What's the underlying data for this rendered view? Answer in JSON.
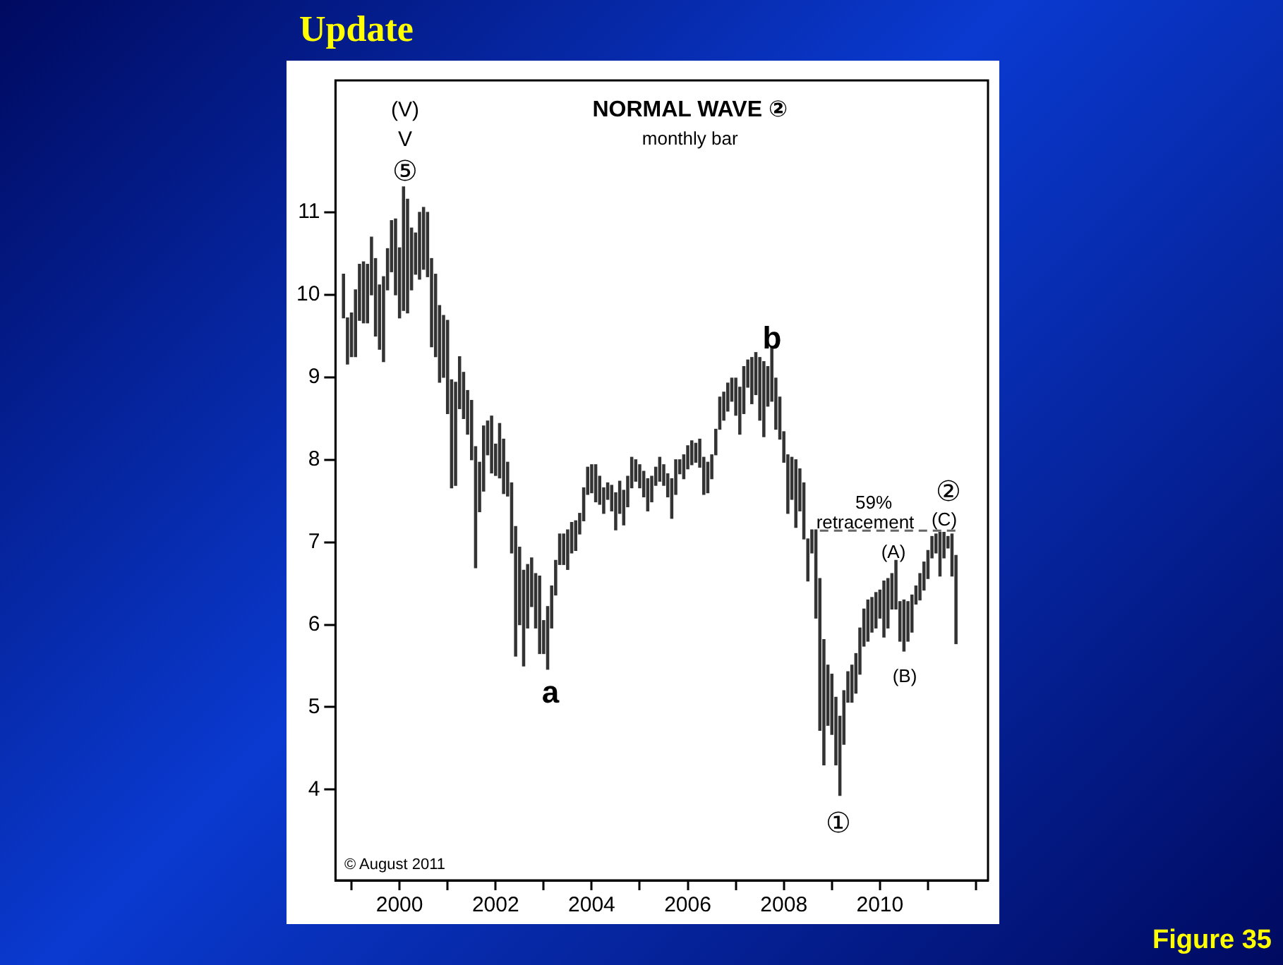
{
  "chart_data": {
    "type": "bar",
    "title": "NORMAL WAVE ②",
    "subtitle": "monthly bar",
    "x": [
      "1998-11",
      "1998-12",
      "1999-01",
      "1999-02",
      "1999-03",
      "1999-04",
      "1999-05",
      "1999-06",
      "1999-07",
      "1999-08",
      "1999-09",
      "1999-10",
      "1999-11",
      "1999-12",
      "2000-01",
      "2000-02",
      "2000-03",
      "2000-04",
      "2000-05",
      "2000-06",
      "2000-07",
      "2000-08",
      "2000-09",
      "2000-10",
      "2000-11",
      "2000-12",
      "2001-01",
      "2001-02",
      "2001-03",
      "2001-04",
      "2001-05",
      "2001-06",
      "2001-07",
      "2001-08",
      "2001-09",
      "2001-10",
      "2001-11",
      "2001-12",
      "2002-01",
      "2002-02",
      "2002-03",
      "2002-04",
      "2002-05",
      "2002-06",
      "2002-07",
      "2002-08",
      "2002-09",
      "2002-10",
      "2002-11",
      "2002-12",
      "2003-01",
      "2003-02",
      "2003-03",
      "2003-04",
      "2003-05",
      "2003-06",
      "2003-07",
      "2003-08",
      "2003-09",
      "2003-10",
      "2003-11",
      "2003-12",
      "2004-01",
      "2004-02",
      "2004-03",
      "2004-04",
      "2004-05",
      "2004-06",
      "2004-07",
      "2004-08",
      "2004-09",
      "2004-10",
      "2004-11",
      "2004-12",
      "2005-01",
      "2005-02",
      "2005-03",
      "2005-04",
      "2005-05",
      "2005-06",
      "2005-07",
      "2005-08",
      "2005-09",
      "2005-10",
      "2005-11",
      "2005-12",
      "2006-01",
      "2006-02",
      "2006-03",
      "2006-04",
      "2006-05",
      "2006-06",
      "2006-07",
      "2006-08",
      "2006-09",
      "2006-10",
      "2006-11",
      "2006-12",
      "2007-01",
      "2007-02",
      "2007-03",
      "2007-04",
      "2007-05",
      "2007-06",
      "2007-07",
      "2007-08",
      "2007-09",
      "2007-10",
      "2007-11",
      "2007-12",
      "2008-01",
      "2008-02",
      "2008-03",
      "2008-04",
      "2008-05",
      "2008-06",
      "2008-07",
      "2008-08",
      "2008-09",
      "2008-10",
      "2008-11",
      "2008-12",
      "2009-01",
      "2009-02",
      "2009-03",
      "2009-04",
      "2009-05",
      "2009-06",
      "2009-07",
      "2009-08",
      "2009-09",
      "2009-10",
      "2009-11",
      "2009-12",
      "2010-01",
      "2010-02",
      "2010-03",
      "2010-04",
      "2010-05",
      "2010-06",
      "2010-07",
      "2010-08",
      "2010-09",
      "2010-10",
      "2010-11",
      "2010-12",
      "2011-01",
      "2011-02",
      "2011-03",
      "2011-04",
      "2011-05",
      "2011-06",
      "2011-07",
      "2011-08"
    ],
    "base": [
      9.72,
      9.16,
      9.25,
      9.25,
      9.69,
      9.66,
      9.66,
      10.0,
      9.5,
      9.34,
      9.19,
      10.06,
      10.28,
      10.0,
      9.72,
      9.81,
      9.78,
      10.06,
      10.25,
      10.19,
      10.31,
      10.22,
      9.37,
      9.25,
      8.94,
      9.0,
      8.56,
      7.66,
      7.69,
      8.62,
      8.5,
      8.31,
      8.0,
      6.69,
      7.37,
      7.62,
      8.06,
      7.84,
      7.81,
      7.78,
      7.59,
      7.56,
      6.87,
      5.62,
      6.0,
      5.5,
      5.96,
      6.22,
      5.96,
      5.65,
      5.65,
      5.46,
      5.96,
      6.36,
      6.73,
      6.73,
      6.67,
      6.87,
      6.9,
      7.1,
      7.26,
      7.58,
      7.6,
      7.49,
      7.46,
      7.35,
      7.52,
      7.38,
      7.15,
      7.35,
      7.21,
      7.43,
      7.66,
      7.74,
      7.66,
      7.55,
      7.38,
      7.49,
      7.69,
      7.74,
      7.69,
      7.55,
      7.29,
      7.58,
      7.83,
      7.77,
      7.89,
      7.94,
      7.97,
      7.91,
      7.58,
      7.6,
      7.77,
      8.06,
      8.37,
      8.48,
      8.59,
      8.71,
      8.54,
      8.31,
      8.56,
      8.88,
      8.68,
      8.79,
      8.48,
      8.28,
      8.65,
      8.71,
      8.37,
      8.25,
      7.97,
      7.35,
      7.52,
      7.18,
      7.38,
      7.04,
      6.53,
      6.87,
      6.08,
      4.72,
      4.3,
      4.78,
      4.67,
      4.3,
      3.93,
      4.55,
      5.06,
      5.06,
      5.17,
      5.4,
      5.74,
      5.8,
      5.91,
      5.96,
      6.08,
      5.85,
      5.96,
      6.19,
      6.19,
      5.8,
      5.68,
      5.8,
      5.91,
      6.25,
      6.3,
      6.42,
      6.56,
      6.81,
      6.87,
      6.59,
      6.81,
      6.93,
      6.59,
      5.77
    ],
    "values": [
      0.53,
      0.56,
      0.53,
      0.81,
      0.68,
      0.74,
      0.71,
      0.7,
      0.94,
      0.78,
      1.03,
      0.5,
      0.62,
      0.92,
      0.85,
      1.5,
      1.38,
      0.75,
      0.5,
      0.81,
      0.75,
      0.78,
      1.07,
      1.0,
      0.93,
      0.75,
      1.13,
      1.31,
      1.25,
      0.63,
      0.56,
      0.53,
      0.72,
      1.47,
      0.6,
      0.79,
      0.41,
      0.69,
      0.38,
      0.66,
      0.66,
      0.41,
      0.85,
      1.57,
      0.94,
      1.16,
      0.77,
      0.59,
      0.66,
      0.94,
      0.4,
      0.76,
      0.51,
      0.42,
      0.37,
      0.37,
      0.48,
      0.37,
      0.36,
      0.25,
      0.4,
      0.33,
      0.34,
      0.45,
      0.34,
      0.31,
      0.2,
      0.31,
      0.45,
      0.39,
      0.42,
      0.37,
      0.37,
      0.26,
      0.28,
      0.31,
      0.39,
      0.31,
      0.22,
      0.29,
      0.25,
      0.28,
      0.48,
      0.42,
      0.17,
      0.29,
      0.28,
      0.29,
      0.23,
      0.34,
      0.45,
      0.37,
      0.29,
      0.31,
      0.39,
      0.34,
      0.34,
      0.28,
      0.45,
      0.57,
      0.57,
      0.33,
      0.56,
      0.51,
      0.76,
      0.91,
      0.48,
      0.65,
      0.62,
      0.51,
      0.37,
      0.71,
      0.51,
      0.82,
      0.51,
      0.68,
      0.51,
      0.28,
      1.07,
      1.84,
      1.52,
      0.73,
      0.73,
      0.82,
      0.96,
      0.65,
      0.37,
      0.45,
      0.48,
      0.56,
      0.45,
      0.5,
      0.42,
      0.43,
      0.34,
      0.68,
      0.6,
      0.43,
      0.59,
      0.48,
      0.62,
      0.48,
      0.45,
      0.22,
      0.32,
      0.34,
      0.34,
      0.26,
      0.23,
      0.53,
      0.31,
      0.14,
      0.51,
      1.07
    ],
    "color": "#333333",
    "series": [
      {
        "type": "line",
        "x": [
          "2008-10",
          "2011-08"
        ],
        "values": [
          7.14,
          7.14
        ],
        "color": "#666666",
        "line_style": "dashed",
        "marker": "none"
      }
    ],
    "xlim": [
      "1998-09",
      "2012-04"
    ],
    "xticks": [
      {
        "value": "1999-01",
        "label": null
      },
      {
        "value": "2000-01",
        "label": "2000"
      },
      {
        "value": "2001-01",
        "label": null
      },
      {
        "value": "2002-01",
        "label": "2002"
      },
      {
        "value": "2003-01",
        "label": null
      },
      {
        "value": "2004-01",
        "label": "2004"
      },
      {
        "value": "2005-01",
        "label": null
      },
      {
        "value": "2006-01",
        "label": "2006"
      },
      {
        "value": "2007-01",
        "label": null
      },
      {
        "value": "2008-01",
        "label": "2008"
      },
      {
        "value": "2009-01",
        "label": null
      },
      {
        "value": "2010-01",
        "label": "2010"
      },
      {
        "value": "2011-01",
        "label": null
      },
      {
        "value": "2012-01",
        "label": null
      }
    ],
    "ylim": [
      2.9,
      12.6
    ],
    "yticks": [
      4,
      5,
      6,
      7,
      8,
      9,
      10,
      11
    ],
    "grid": false,
    "legend": false,
    "annotations": [
      "Update",
      "© August 2011",
      "Figure 35",
      "(V)",
      "V",
      "⑤",
      "a",
      "b",
      "①",
      "59%",
      "retracement",
      "(A)",
      "(B)",
      "②",
      "(C)"
    ]
  }
}
